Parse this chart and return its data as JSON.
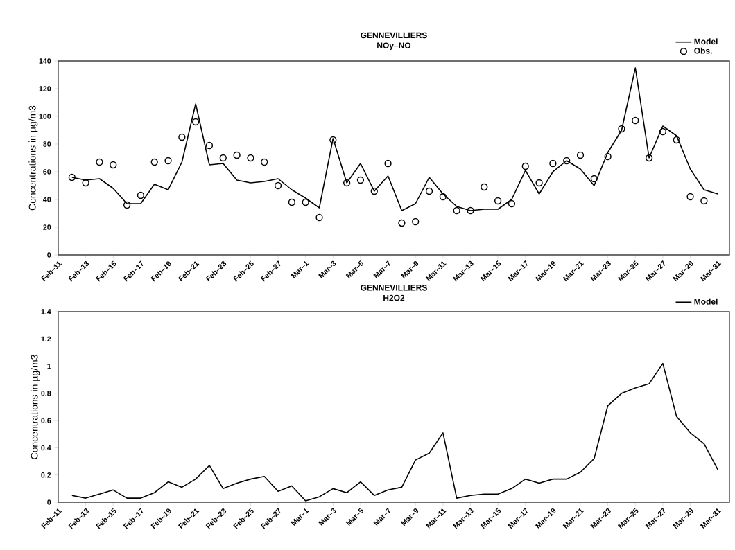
{
  "chart_data": [
    {
      "type": "line",
      "title": "GENNEVILLIERS",
      "subtitle": "NOy–NO",
      "ylabel": "Concentrations in µg/m3",
      "categories": [
        "Feb–11",
        null,
        "Feb–13",
        null,
        "Feb–15",
        null,
        "Feb–17",
        null,
        "Feb–19",
        null,
        "Feb–21",
        null,
        "Feb–23",
        null,
        "Feb–25",
        null,
        "Feb–27",
        null,
        "Mar–1",
        null,
        "Mar–3",
        null,
        "Mar–5",
        null,
        "Mar–7",
        null,
        "Mar–9",
        null,
        "Mar–11",
        null,
        "Mar–13",
        null,
        "Mar–15",
        null,
        "Mar–17",
        null,
        "Mar–19",
        null,
        "Mar–21",
        null,
        "Mar–23",
        null,
        "Mar–25",
        null,
        "Mar–27",
        null,
        "Mar–29",
        null,
        "Mar–31"
      ],
      "ylim": [
        0,
        140
      ],
      "yticks": [
        0,
        20,
        40,
        60,
        80,
        100,
        120,
        140
      ],
      "legend": "top right",
      "series": [
        {
          "name": "Model",
          "marker": "none",
          "color": "#000000",
          "values": [
            null,
            56,
            54,
            55,
            48,
            37,
            37,
            51,
            47,
            67,
            109,
            65,
            66,
            54,
            52,
            53,
            55,
            47,
            41,
            34,
            84,
            52,
            66,
            46,
            57,
            32,
            37,
            56,
            44,
            35,
            32,
            33,
            33,
            40,
            61,
            44,
            60,
            68,
            62,
            50,
            74,
            90,
            135,
            70,
            93,
            86,
            62,
            47,
            44
          ]
        },
        {
          "name": "Obs.",
          "type": "scatter",
          "marker": "circle",
          "color": "#000000",
          "values": [
            null,
            56,
            52,
            67,
            65,
            36,
            43,
            67,
            68,
            85,
            96,
            79,
            70,
            72,
            70,
            67,
            50,
            38,
            38,
            27,
            83,
            52,
            54,
            46,
            66,
            23,
            24,
            46,
            42,
            32,
            32,
            49,
            39,
            37,
            64,
            52,
            66,
            68,
            72,
            55,
            71,
            91,
            97,
            70,
            89,
            83,
            42,
            39,
            null
          ]
        }
      ]
    },
    {
      "type": "line",
      "title": "GENNEVILLIERS",
      "subtitle": "H2O2",
      "ylabel": "Concentrations in µg/m3",
      "categories": [
        "Feb–11",
        null,
        "Feb–13",
        null,
        "Feb–15",
        null,
        "Feb–17",
        null,
        "Feb–19",
        null,
        "Feb–21",
        null,
        "Feb–23",
        null,
        "Feb–25",
        null,
        "Feb–27",
        null,
        "Mar–1",
        null,
        "Mar–3",
        null,
        "Mar–5",
        null,
        "Mar–7",
        null,
        "Mar–9",
        null,
        "Mar–11",
        null,
        "Mar–13",
        null,
        "Mar–15",
        null,
        "Mar–17",
        null,
        "Mar–19",
        null,
        "Mar–21",
        null,
        "Mar–23",
        null,
        "Mar–25",
        null,
        "Mar–27",
        null,
        "Mar–29",
        null,
        "Mar–31"
      ],
      "ylim": [
        0,
        1.4
      ],
      "yticks": [
        0,
        0.2,
        0.4,
        0.6,
        0.8,
        1,
        1.2,
        1.4
      ],
      "legend": "top right",
      "series": [
        {
          "name": "Model",
          "marker": "none",
          "color": "#000000",
          "values": [
            null,
            0.05,
            0.03,
            0.06,
            0.09,
            0.03,
            0.03,
            0.07,
            0.15,
            0.11,
            0.17,
            0.27,
            0.1,
            0.14,
            0.17,
            0.19,
            0.08,
            0.12,
            0.01,
            0.04,
            0.1,
            0.07,
            0.15,
            0.05,
            0.09,
            0.11,
            0.31,
            0.36,
            0.51,
            0.03,
            0.05,
            0.06,
            0.06,
            0.1,
            0.17,
            0.14,
            0.17,
            0.17,
            0.22,
            0.32,
            0.71,
            0.8,
            0.84,
            0.87,
            1.02,
            0.63,
            0.51,
            0.43,
            0.24
          ]
        }
      ]
    }
  ]
}
